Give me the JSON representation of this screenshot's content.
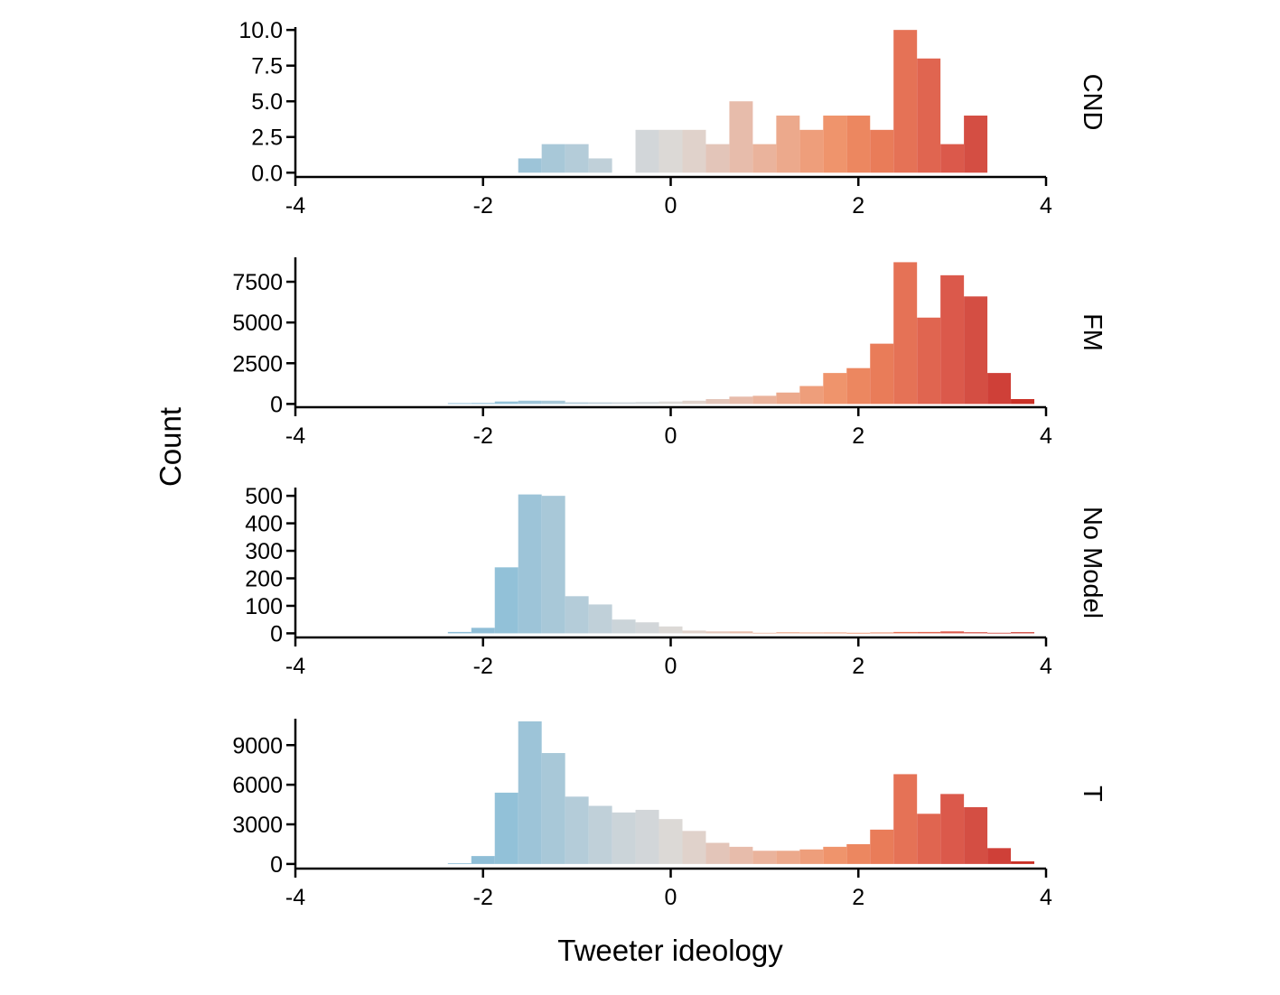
{
  "chart_data": {
    "type": "bar",
    "subtype": "faceted histogram",
    "xlabel": "Tweeter ideology",
    "ylabel": "Count",
    "xlim": [
      -4,
      4
    ],
    "x_ticks": [
      "-4",
      "-2",
      "0",
      "2",
      "4"
    ],
    "bin_width": 0.25,
    "bin_centers": [
      -2.25,
      -2.0,
      -1.75,
      -1.5,
      -1.25,
      -1.0,
      -0.75,
      -0.5,
      -0.25,
      0.0,
      0.25,
      0.5,
      0.75,
      1.0,
      1.25,
      1.5,
      1.75,
      2.0,
      2.25,
      2.5,
      2.75,
      3.0,
      3.25,
      3.5,
      3.75
    ],
    "bin_colors": [
      "#8bbcd6",
      "#8fbed7",
      "#92c1d8",
      "#9dc4d8",
      "#a8c8d8",
      "#b4ccd9",
      "#c0d0d9",
      "#cbd4d9",
      "#d2d6d9",
      "#dcd9d6",
      "#e0d2cb",
      "#e3c5b9",
      "#e7bcab",
      "#eab39c",
      "#eca98c",
      "#ee9e7b",
      "#ef946c",
      "#ec8760",
      "#e97c59",
      "#e57256",
      "#e06550",
      "#db594b",
      "#d44e43",
      "#cf4038",
      "#ca3127"
    ],
    "facets": [
      {
        "label": "CND",
        "y_ticks": [
          "0.0",
          "2.5",
          "5.0",
          "7.5",
          "10.0"
        ],
        "ylim": [
          -0.3,
          10.2
        ],
        "values": [
          0,
          0,
          0,
          1,
          2,
          2,
          1,
          0,
          3,
          3,
          3,
          2,
          5,
          2,
          4,
          3,
          4,
          4,
          3,
          10,
          8,
          2,
          4,
          0,
          0
        ]
      },
      {
        "label": "FM",
        "y_ticks": [
          "0",
          "2500",
          "5000",
          "7500"
        ],
        "ylim": [
          -200,
          9000
        ],
        "values": [
          50,
          60,
          150,
          200,
          200,
          100,
          100,
          100,
          120,
          150,
          200,
          300,
          450,
          500,
          700,
          1100,
          1900,
          2200,
          3700,
          8700,
          5300,
          7900,
          6600,
          1900,
          300
        ]
      },
      {
        "label": "No Model",
        "y_ticks": [
          "0",
          "100",
          "200",
          "300",
          "400",
          "500"
        ],
        "ylim": [
          -15,
          530
        ],
        "values": [
          5,
          20,
          240,
          505,
          500,
          135,
          105,
          50,
          40,
          25,
          10,
          7,
          7,
          2,
          4,
          3,
          3,
          2,
          3,
          5,
          5,
          7,
          4,
          2,
          4
        ]
      },
      {
        "label": "T",
        "y_ticks": [
          "0",
          "3000",
          "6000",
          "9000"
        ],
        "ylim": [
          -350,
          11000
        ],
        "values": [
          50,
          600,
          5400,
          10800,
          8400,
          5100,
          4400,
          3900,
          4100,
          3400,
          2500,
          1600,
          1300,
          1000,
          1000,
          1100,
          1300,
          1500,
          2600,
          6800,
          3800,
          5300,
          4300,
          1200,
          200
        ]
      }
    ],
    "grid": false,
    "legend": "none"
  }
}
